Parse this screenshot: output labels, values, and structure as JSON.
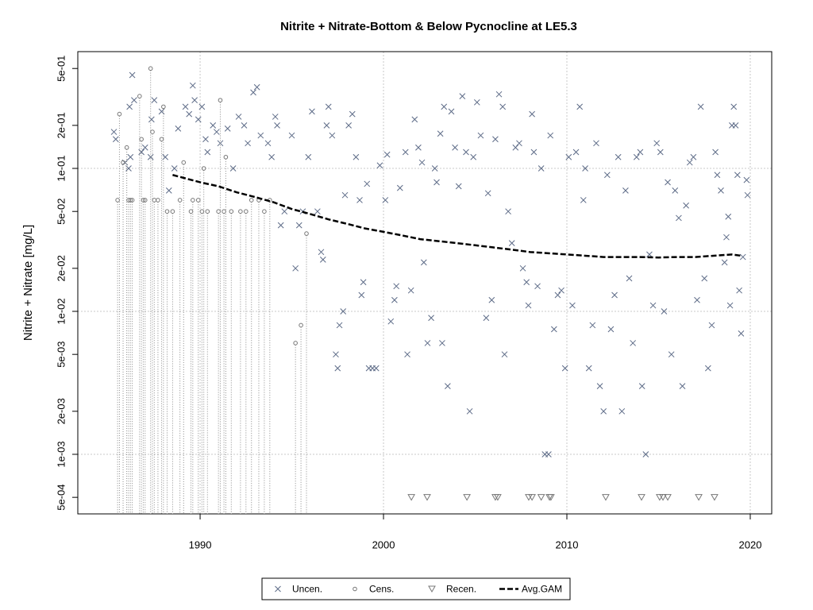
{
  "chart_data": {
    "type": "scatter",
    "title": "Nitrite + Nitrate-Bottom & Below Pycnocline at LE5.3",
    "y_label": "Nitrite + Nitrate [mg/L]",
    "log_y": true,
    "grid": true,
    "legend": "bottom",
    "xlim": [
      1983.33,
      2021.17
    ],
    "xticks": [
      1990,
      2000,
      2010,
      2020
    ],
    "ylim": [
      0.000383,
      0.656
    ],
    "yticks": [
      {
        "value": 0.5,
        "label": "5e-01"
      },
      {
        "value": 0.2,
        "label": "2e-01"
      },
      {
        "value": 0.1,
        "label": "1e-01"
      },
      {
        "value": 0.05,
        "label": "5e-02"
      },
      {
        "value": 0.02,
        "label": "2e-02"
      },
      {
        "value": 0.01,
        "label": "1e-02"
      },
      {
        "value": 0.005,
        "label": "5e-03"
      },
      {
        "value": 0.002,
        "label": "2e-03"
      },
      {
        "value": 0.001,
        "label": "1e-03"
      },
      {
        "value": 0.0005,
        "label": "5e-04"
      }
    ],
    "series": [
      {
        "name": "Uncen.",
        "color": "#5d6b87",
        "marker": "x",
        "x": [
          1985.3,
          1985.4,
          1985.9,
          1986.1,
          1986.2,
          1986.3,
          1986.4,
          1986.15,
          1986.8,
          1987.0,
          1987.3,
          1987.5,
          1987.35,
          1987.9,
          1988.1,
          1988.3,
          1988.6,
          1988.8,
          1989.2,
          1989.4,
          1989.6,
          1989.7,
          1989.9,
          1990.1,
          1990.3,
          1990.4,
          1990.7,
          1990.9,
          1991.1,
          1991.5,
          1991.8,
          1992.1,
          1992.4,
          1992.6,
          1992.9,
          1993.1,
          1993.3,
          1993.7,
          1993.9,
          1994.1,
          1994.4,
          1994.6,
          1994.2,
          1995.0,
          1995.2,
          1995.4,
          1995.6,
          1995.9,
          1996.1,
          1996.4,
          1996.6,
          1996.7,
          1996.9,
          1997.0,
          1997.2,
          1997.4,
          1997.5,
          1997.6,
          1997.8,
          1997.9,
          1998.1,
          1998.3,
          1998.5,
          1998.7,
          1998.8,
          1998.9,
          1999.1,
          1999.2,
          1999.4,
          1999.6,
          1999.8,
          2000.1,
          2000.2,
          2000.4,
          2000.6,
          2000.7,
          2000.9,
          2001.2,
          2001.3,
          2001.5,
          2001.7,
          2001.9,
          2002.1,
          2002.2,
          2002.4,
          2002.6,
          2002.8,
          2002.9,
          2003.1,
          2003.2,
          2003.3,
          2003.5,
          2003.7,
          2003.9,
          2004.1,
          2004.3,
          2004.5,
          2004.7,
          2004.9,
          2005.1,
          2005.3,
          2005.6,
          2005.7,
          2005.9,
          2006.1,
          2006.3,
          2006.5,
          2006.6,
          2006.8,
          2007.0,
          2007.2,
          2007.4,
          2007.6,
          2007.8,
          2007.9,
          2008.1,
          2008.2,
          2008.4,
          2008.6,
          2008.8,
          2009.0,
          2009.1,
          2009.3,
          2009.5,
          2009.7,
          2009.9,
          2010.1,
          2010.3,
          2010.5,
          2010.7,
          2010.9,
          2011.0,
          2011.2,
          2011.4,
          2011.6,
          2011.8,
          2012.0,
          2012.2,
          2012.4,
          2012.6,
          2012.8,
          2013.0,
          2013.2,
          2013.4,
          2013.6,
          2013.8,
          2014.0,
          2014.1,
          2014.3,
          2014.5,
          2014.7,
          2014.9,
          2015.1,
          2015.3,
          2015.5,
          2015.7,
          2015.9,
          2016.1,
          2016.3,
          2016.5,
          2016.7,
          2016.9,
          2017.1,
          2017.3,
          2017.5,
          2017.7,
          2017.9,
          2018.1,
          2018.2,
          2018.4,
          2018.6,
          2018.7,
          2018.8,
          2018.9,
          2019.0,
          2019.1,
          2019.2,
          2019.3,
          2019.4,
          2019.5,
          2019.6,
          2019.8,
          2019.85
        ],
        "values": [
          0.18,
          0.16,
          0.11,
          0.1,
          0.12,
          0.45,
          0.3,
          0.27,
          0.13,
          0.14,
          0.12,
          0.3,
          0.22,
          0.25,
          0.12,
          0.07,
          0.1,
          0.19,
          0.27,
          0.24,
          0.38,
          0.3,
          0.22,
          0.27,
          0.16,
          0.13,
          0.2,
          0.18,
          0.15,
          0.19,
          0.1,
          0.23,
          0.2,
          0.15,
          0.34,
          0.37,
          0.17,
          0.15,
          0.12,
          0.23,
          0.04,
          0.05,
          0.2,
          0.17,
          0.02,
          0.04,
          0.05,
          0.12,
          0.25,
          0.05,
          0.026,
          0.023,
          0.2,
          0.27,
          0.17,
          0.005,
          0.004,
          0.008,
          0.01,
          0.065,
          0.2,
          0.24,
          0.12,
          0.06,
          0.013,
          0.016,
          0.078,
          0.004,
          0.004,
          0.004,
          0.105,
          0.06,
          0.125,
          0.0085,
          0.012,
          0.015,
          0.073,
          0.13,
          0.005,
          0.014,
          0.22,
          0.14,
          0.11,
          0.022,
          0.006,
          0.009,
          0.1,
          0.08,
          0.175,
          0.006,
          0.27,
          0.003,
          0.25,
          0.14,
          0.075,
          0.32,
          0.13,
          0.002,
          0.12,
          0.29,
          0.17,
          0.009,
          0.067,
          0.012,
          0.16,
          0.33,
          0.27,
          0.005,
          0.05,
          0.03,
          0.14,
          0.15,
          0.02,
          0.016,
          0.011,
          0.24,
          0.13,
          0.015,
          0.1,
          0.001,
          0.001,
          0.17,
          0.0075,
          0.013,
          0.014,
          0.004,
          0.12,
          0.011,
          0.13,
          0.27,
          0.06,
          0.1,
          0.004,
          0.008,
          0.15,
          0.003,
          0.002,
          0.09,
          0.0075,
          0.013,
          0.12,
          0.002,
          0.07,
          0.017,
          0.006,
          0.12,
          0.13,
          0.003,
          0.001,
          0.025,
          0.011,
          0.15,
          0.13,
          0.01,
          0.08,
          0.005,
          0.07,
          0.045,
          0.003,
          0.055,
          0.11,
          0.12,
          0.012,
          0.27,
          0.017,
          0.004,
          0.008,
          0.13,
          0.09,
          0.07,
          0.022,
          0.033,
          0.046,
          0.011,
          0.2,
          0.27,
          0.2,
          0.09,
          0.014,
          0.007,
          0.024,
          0.083,
          0.065
        ]
      },
      {
        "name": "Cens.",
        "color": "#777777",
        "marker": "circle",
        "censored": true,
        "x": [
          1985.5,
          1985.6,
          1985.8,
          1986.0,
          1986.1,
          1986.2,
          1986.3,
          1986.7,
          1986.8,
          1986.9,
          1987.0,
          1987.3,
          1987.4,
          1987.5,
          1987.7,
          1987.9,
          1988.0,
          1988.2,
          1988.5,
          1988.9,
          1989.1,
          1989.5,
          1989.6,
          1989.9,
          1990.1,
          1990.2,
          1990.4,
          1991.0,
          1991.1,
          1991.3,
          1991.4,
          1991.7,
          1992.2,
          1992.5,
          1992.8,
          1993.2,
          1993.5,
          1993.8,
          1995.2,
          1995.5,
          1995.8
        ],
        "values": [
          0.06,
          0.24,
          0.11,
          0.14,
          0.06,
          0.06,
          0.06,
          0.32,
          0.16,
          0.06,
          0.06,
          0.5,
          0.18,
          0.06,
          0.06,
          0.16,
          0.27,
          0.05,
          0.05,
          0.06,
          0.11,
          0.05,
          0.06,
          0.06,
          0.05,
          0.1,
          0.05,
          0.05,
          0.3,
          0.05,
          0.12,
          0.05,
          0.05,
          0.05,
          0.06,
          0.06,
          0.05,
          0.06,
          0.006,
          0.008,
          0.035
        ]
      },
      {
        "name": "Recen.",
        "color": "#777777",
        "marker": "triangle",
        "x": [
          2001.52,
          2002.38,
          2004.55,
          2006.1,
          2006.23,
          2007.92,
          2008.1,
          2008.6,
          2009.05,
          2009.13,
          2012.12,
          2014.07,
          2015.06,
          2015.24,
          2015.5,
          2017.19,
          2018.05
        ],
        "values": [
          0.0005,
          0.0005,
          0.0005,
          0.0005,
          0.0005,
          0.0005,
          0.0005,
          0.0005,
          0.0005,
          0.0005,
          0.0005,
          0.0005,
          0.0005,
          0.0005,
          0.0005,
          0.0005,
          0.0005
        ]
      },
      {
        "name": "Avg.GAM",
        "color": "#000000",
        "marker": "dashed-line",
        "x": [
          1988.5,
          1990,
          1991,
          1992,
          1993,
          1994,
          1995,
          1996,
          1997,
          1998,
          1999,
          2000,
          2001,
          2002,
          2003,
          2004,
          2005,
          2006,
          2007,
          2008,
          2009,
          2010,
          2011,
          2012,
          2013,
          2014,
          2015,
          2016,
          2017,
          2018,
          2019,
          2019.5
        ],
        "values": [
          0.09,
          0.08,
          0.075,
          0.068,
          0.063,
          0.058,
          0.052,
          0.048,
          0.044,
          0.041,
          0.038,
          0.036,
          0.034,
          0.032,
          0.031,
          0.03,
          0.029,
          0.028,
          0.027,
          0.026,
          0.0255,
          0.025,
          0.0245,
          0.024,
          0.024,
          0.024,
          0.0238,
          0.024,
          0.024,
          0.0245,
          0.025,
          0.0245
        ]
      }
    ]
  }
}
